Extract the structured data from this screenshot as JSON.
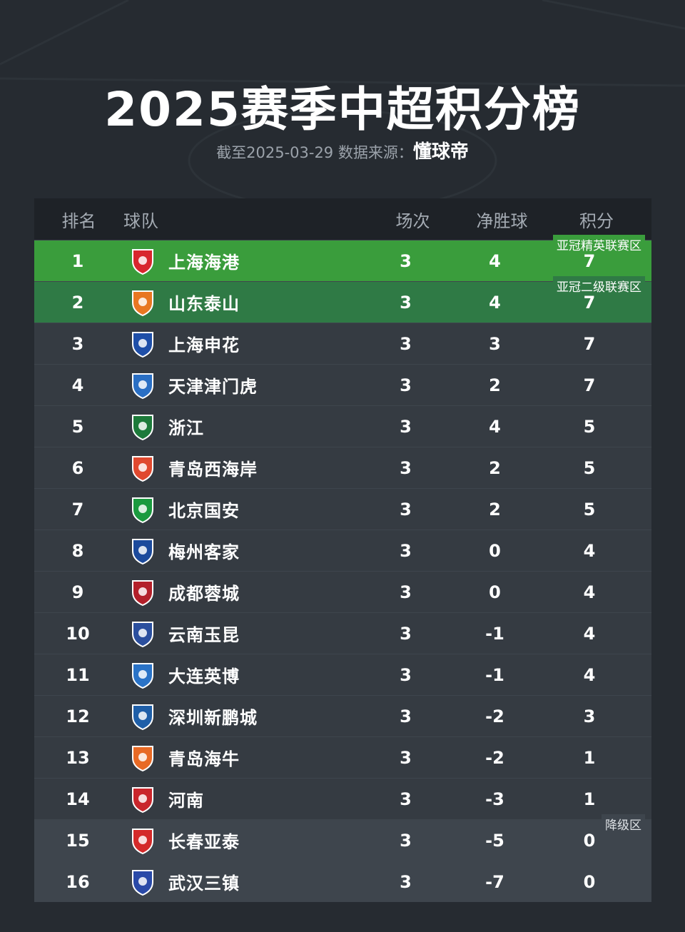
{
  "header": {
    "title": "2025赛季中超积分榜",
    "subtitle_prefix": "截至2025-03-29 数据来源：",
    "brand": "懂球帝"
  },
  "columns": {
    "rank": "排名",
    "team": "球队",
    "played": "场次",
    "goal_diff": "净胜球",
    "points": "积分"
  },
  "zones": {
    "acl_elite": "亚冠精英联赛区",
    "acl_two": "亚冠二级联赛区",
    "relegation": "降级区"
  },
  "colors": {
    "background": "#262b31",
    "row_default": "#353b42",
    "row_acl_elite": "#3a9d3c",
    "row_acl_two": "#2f7a45",
    "row_relegation": "#3e454d"
  },
  "rows": [
    {
      "rank": "1",
      "team": "上海海港",
      "played": "3",
      "gd": "4",
      "pts": "7",
      "logo_icon": "shanghai-port-crest-icon",
      "logo_color": "#d8262e",
      "zone": "acl_elite"
    },
    {
      "rank": "2",
      "team": "山东泰山",
      "played": "3",
      "gd": "4",
      "pts": "7",
      "logo_icon": "shandong-taishan-crest-icon",
      "logo_color": "#e87722",
      "zone": "acl_two"
    },
    {
      "rank": "3",
      "team": "上海申花",
      "played": "3",
      "gd": "3",
      "pts": "7",
      "logo_icon": "shanghai-shenhua-crest-icon",
      "logo_color": "#1f4fa8",
      "zone": ""
    },
    {
      "rank": "4",
      "team": "天津津门虎",
      "played": "3",
      "gd": "2",
      "pts": "7",
      "logo_icon": "tianjin-jinmen-tiger-crest-icon",
      "logo_color": "#2a6fc4",
      "zone": ""
    },
    {
      "rank": "5",
      "team": "浙江",
      "played": "3",
      "gd": "4",
      "pts": "5",
      "logo_icon": "zhejiang-crest-icon",
      "logo_color": "#1d7a3a",
      "zone": ""
    },
    {
      "rank": "6",
      "team": "青岛西海岸",
      "played": "3",
      "gd": "2",
      "pts": "5",
      "logo_icon": "qingdao-west-coast-crest-icon",
      "logo_color": "#e0492f",
      "zone": ""
    },
    {
      "rank": "7",
      "team": "北京国安",
      "played": "3",
      "gd": "2",
      "pts": "5",
      "logo_icon": "beijing-guoan-crest-icon",
      "logo_color": "#1b9a3f",
      "zone": ""
    },
    {
      "rank": "8",
      "team": "梅州客家",
      "played": "3",
      "gd": "0",
      "pts": "4",
      "logo_icon": "meizhou-hakka-crest-icon",
      "logo_color": "#1c4a9c",
      "zone": ""
    },
    {
      "rank": "9",
      "team": "成都蓉城",
      "played": "3",
      "gd": "0",
      "pts": "4",
      "logo_icon": "chengdu-rongcheng-crest-icon",
      "logo_color": "#b3202a",
      "zone": ""
    },
    {
      "rank": "10",
      "team": "云南玉昆",
      "played": "3",
      "gd": "-1",
      "pts": "4",
      "logo_icon": "yunnan-yukun-crest-icon",
      "logo_color": "#2b4f9e",
      "zone": ""
    },
    {
      "rank": "11",
      "team": "大连英博",
      "played": "3",
      "gd": "-1",
      "pts": "4",
      "logo_icon": "dalian-yingbo-crest-icon",
      "logo_color": "#2a73c7",
      "zone": ""
    },
    {
      "rank": "12",
      "team": "深圳新鹏城",
      "played": "3",
      "gd": "-2",
      "pts": "3",
      "logo_icon": "shenzhen-peng-city-crest-icon",
      "logo_color": "#1f5fa8",
      "zone": ""
    },
    {
      "rank": "13",
      "team": "青岛海牛",
      "played": "3",
      "gd": "-2",
      "pts": "1",
      "logo_icon": "qingdao-hainiu-crest-icon",
      "logo_color": "#e86a25",
      "zone": ""
    },
    {
      "rank": "14",
      "team": "河南",
      "played": "3",
      "gd": "-3",
      "pts": "1",
      "logo_icon": "henan-crest-icon",
      "logo_color": "#c9262c",
      "zone": ""
    },
    {
      "rank": "15",
      "team": "长春亚泰",
      "played": "3",
      "gd": "-5",
      "pts": "0",
      "logo_icon": "changchun-yatai-crest-icon",
      "logo_color": "#d42a2a",
      "zone": "relegation"
    },
    {
      "rank": "16",
      "team": "武汉三镇",
      "played": "3",
      "gd": "-7",
      "pts": "0",
      "logo_icon": "wuhan-three-towns-crest-icon",
      "logo_color": "#2a4aa8",
      "zone": "relegation"
    }
  ]
}
